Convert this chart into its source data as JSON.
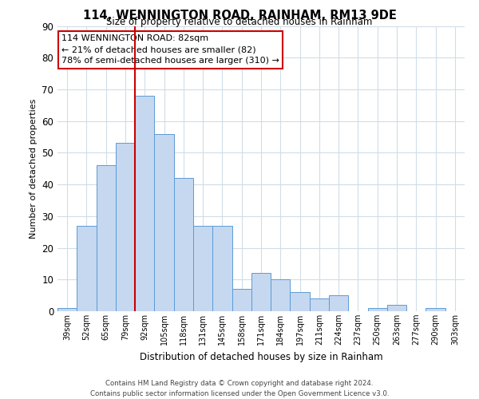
{
  "title": "114, WENNINGTON ROAD, RAINHAM, RM13 9DE",
  "subtitle": "Size of property relative to detached houses in Rainham",
  "xlabel": "Distribution of detached houses by size in Rainham",
  "ylabel": "Number of detached properties",
  "bar_labels": [
    "39sqm",
    "52sqm",
    "65sqm",
    "79sqm",
    "92sqm",
    "105sqm",
    "118sqm",
    "131sqm",
    "145sqm",
    "158sqm",
    "171sqm",
    "184sqm",
    "197sqm",
    "211sqm",
    "224sqm",
    "237sqm",
    "250sqm",
    "263sqm",
    "277sqm",
    "290sqm",
    "303sqm"
  ],
  "bar_heights": [
    1,
    27,
    46,
    53,
    68,
    56,
    42,
    27,
    27,
    7,
    12,
    10,
    6,
    4,
    5,
    0,
    1,
    2,
    0,
    1,
    0
  ],
  "bar_color": "#c5d8f0",
  "bar_edge_color": "#5b9bd5",
  "grid_color": "#d0dde8",
  "background_color": "#ffffff",
  "vline_index": 3.5,
  "vline_color": "#cc0000",
  "annotation_text": "114 WENNINGTON ROAD: 82sqm\n← 21% of detached houses are smaller (82)\n78% of semi-detached houses are larger (310) →",
  "annotation_box_edge": "#cc0000",
  "ylim": [
    0,
    90
  ],
  "yticks": [
    0,
    10,
    20,
    30,
    40,
    50,
    60,
    70,
    80,
    90
  ],
  "footer_line1": "Contains HM Land Registry data © Crown copyright and database right 2024.",
  "footer_line2": "Contains public sector information licensed under the Open Government Licence v3.0."
}
